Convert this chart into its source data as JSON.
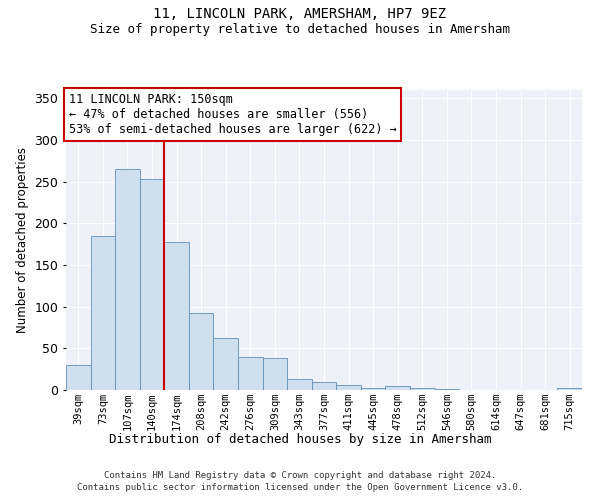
{
  "title": "11, LINCOLN PARK, AMERSHAM, HP7 9EZ",
  "subtitle": "Size of property relative to detached houses in Amersham",
  "xlabel": "Distribution of detached houses by size in Amersham",
  "ylabel": "Number of detached properties",
  "bar_labels": [
    "39sqm",
    "73sqm",
    "107sqm",
    "140sqm",
    "174sqm",
    "208sqm",
    "242sqm",
    "276sqm",
    "309sqm",
    "343sqm",
    "377sqm",
    "411sqm",
    "445sqm",
    "478sqm",
    "512sqm",
    "546sqm",
    "580sqm",
    "614sqm",
    "647sqm",
    "681sqm",
    "715sqm"
  ],
  "bar_values": [
    30,
    185,
    265,
    253,
    178,
    93,
    63,
    40,
    39,
    13,
    10,
    6,
    3,
    5,
    2,
    1,
    0,
    0,
    0,
    0,
    2
  ],
  "bar_color": "#d0dfee",
  "bar_edge_color": "#6090b8",
  "vline_x_index": 3,
  "vline_color": "#cc0000",
  "annotation_title": "11 LINCOLN PARK: 150sqm",
  "annotation_line1": "← 47% of detached houses are smaller (556)",
  "annotation_line2": "53% of semi-detached houses are larger (622) →",
  "annotation_box_color": "#ffffff",
  "annotation_box_edge": "#cc0000",
  "ylim": [
    0,
    360
  ],
  "yticks": [
    0,
    50,
    100,
    150,
    200,
    250,
    300,
    350
  ],
  "footnote1": "Contains HM Land Registry data © Crown copyright and database right 2024.",
  "footnote2": "Contains public sector information licensed under the Open Government Licence v3.0.",
  "bg_color": "#eef2f8",
  "grid_color": "#ffffff",
  "title_fontsize": 10,
  "subtitle_fontsize": 9
}
